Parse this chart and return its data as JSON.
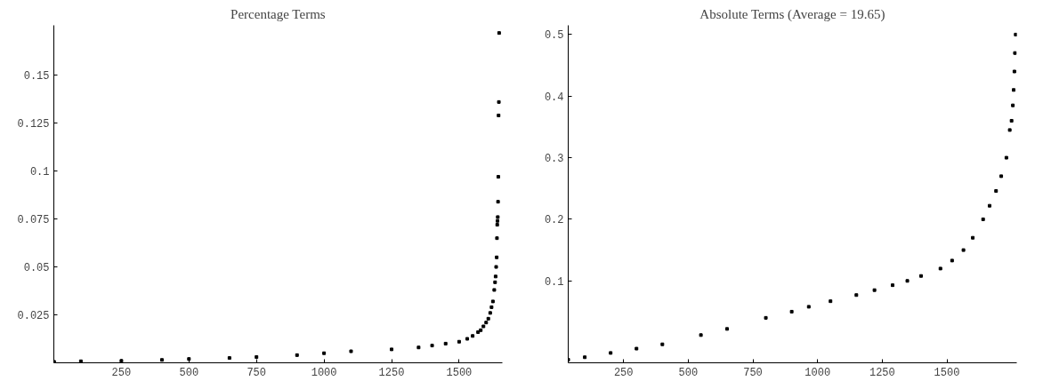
{
  "chart_data": [
    {
      "type": "scatter",
      "title": "Percentage Terms",
      "marker": "square",
      "grid": false,
      "xlim": [
        0,
        1660
      ],
      "xticks": [
        250,
        500,
        750,
        1000,
        1250,
        1500
      ],
      "ylim": [
        0,
        0.176
      ],
      "yticks": [
        0.025,
        0.05,
        0.075,
        0.1,
        0.125,
        0.15
      ],
      "series": [
        {
          "color": "#000000",
          "x": [
            1,
            100,
            250,
            400,
            500,
            650,
            750,
            900,
            1000,
            1100,
            1250,
            1350,
            1400,
            1450,
            1500,
            1530,
            1550,
            1570,
            1580,
            1590,
            1600,
            1608,
            1615,
            1620,
            1625,
            1630,
            1633,
            1635,
            1637,
            1639,
            1640,
            1641,
            1642,
            1643,
            1644,
            1645,
            1646,
            1647,
            1648
          ],
          "values": [
            0.0005,
            0.0008,
            0.001,
            0.0015,
            0.002,
            0.0025,
            0.003,
            0.004,
            0.005,
            0.006,
            0.007,
            0.008,
            0.009,
            0.01,
            0.011,
            0.0125,
            0.014,
            0.016,
            0.017,
            0.019,
            0.021,
            0.023,
            0.026,
            0.029,
            0.032,
            0.038,
            0.042,
            0.045,
            0.05,
            0.055,
            0.065,
            0.072,
            0.074,
            0.076,
            0.084,
            0.097,
            0.129,
            0.136,
            0.172
          ]
        }
      ]
    },
    {
      "type": "scatter",
      "title": "Absolute Terms (Average = 19.65)",
      "marker": "square",
      "grid": false,
      "xlim": [
        36,
        1770
      ],
      "xticks": [
        250,
        500,
        750,
        1000,
        1250,
        1500
      ],
      "ylim": [
        -0.033,
        0.515
      ],
      "yticks": [
        0.1,
        0.2,
        0.3,
        0.4,
        0.5
      ],
      "series": [
        {
          "color": "#000000",
          "x": [
            36,
            100,
            200,
            300,
            400,
            549,
            650,
            800,
            900,
            966,
            1050,
            1150,
            1220,
            1290,
            1347,
            1400,
            1475,
            1520,
            1564,
            1600,
            1640,
            1665,
            1690,
            1710,
            1730,
            1743,
            1750,
            1755,
            1758,
            1761,
            1763,
            1766
          ],
          "values": [
            -0.028,
            -0.024,
            -0.017,
            -0.01,
            -0.003,
            0.012,
            0.022,
            0.04,
            0.05,
            0.058,
            0.067,
            0.077,
            0.085,
            0.093,
            0.1,
            0.108,
            0.12,
            0.133,
            0.15,
            0.17,
            0.2,
            0.222,
            0.246,
            0.27,
            0.3,
            0.345,
            0.36,
            0.385,
            0.41,
            0.44,
            0.47,
            0.5
          ]
        }
      ]
    }
  ]
}
